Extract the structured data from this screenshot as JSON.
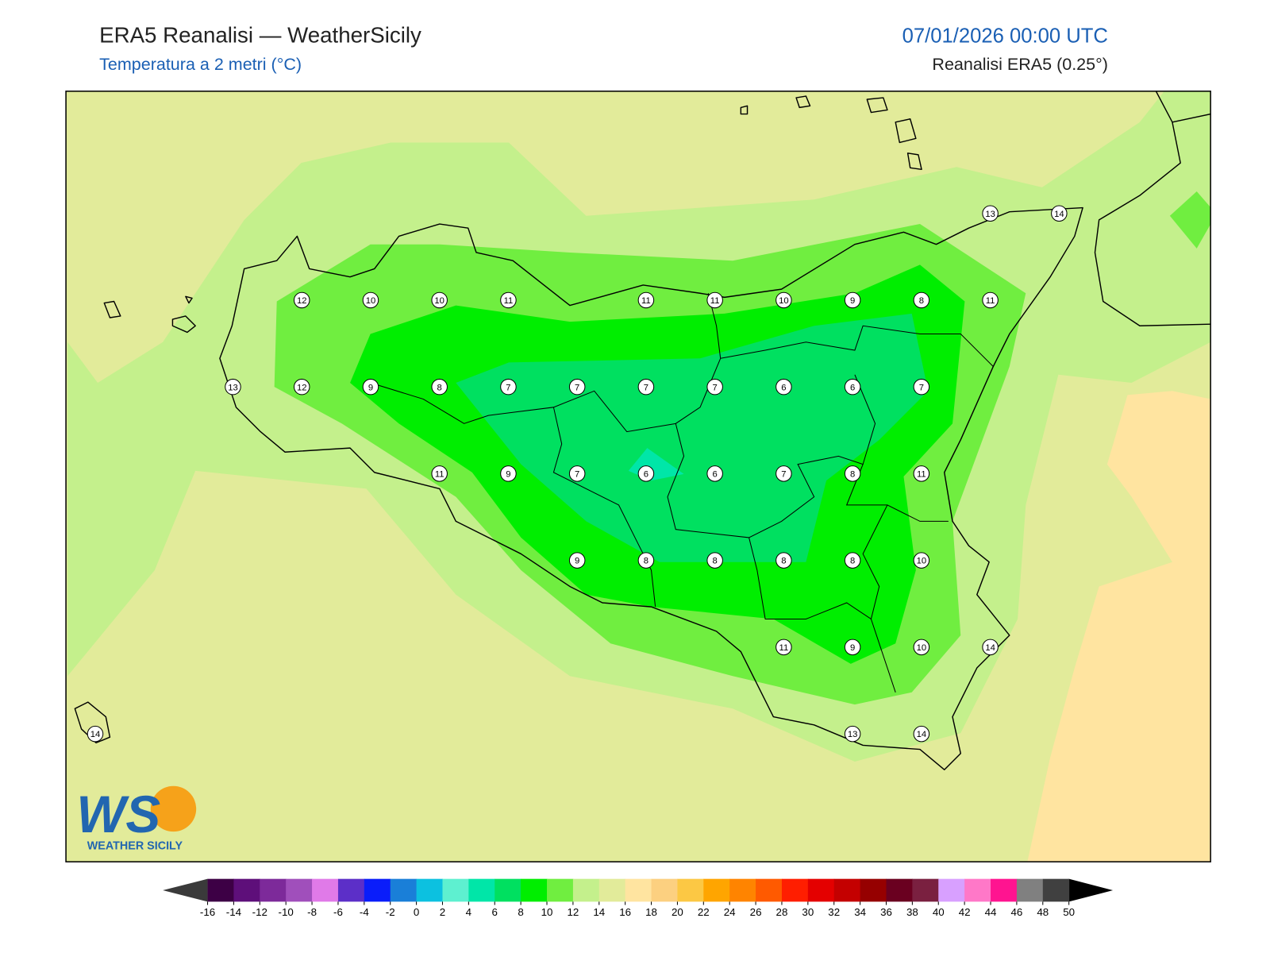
{
  "header": {
    "title": "ERA5 Reanalisi — WeatherSicily",
    "subtitle": "Temperatura a 2 metri (°C)",
    "date": "07/01/2026 00:00 UTC",
    "source": "Reanalisi ERA5 (0.25°)"
  },
  "stations": {
    "rows": [
      [
        null,
        null,
        null,
        null,
        null,
        null,
        null,
        null,
        null,
        null,
        null,
        null,
        null,
        13,
        14
      ],
      [
        null,
        null,
        null,
        12,
        10,
        10,
        11,
        null,
        11,
        11,
        10,
        9,
        8,
        11,
        null
      ],
      [
        null,
        null,
        13,
        12,
        9,
        8,
        7,
        7,
        7,
        7,
        6,
        6,
        7,
        null,
        null
      ],
      [
        null,
        null,
        null,
        null,
        null,
        11,
        9,
        7,
        6,
        6,
        7,
        8,
        11,
        null,
        null
      ],
      [
        null,
        null,
        null,
        null,
        null,
        null,
        null,
        9,
        8,
        8,
        8,
        8,
        10,
        null,
        null
      ],
      [
        null,
        null,
        null,
        null,
        null,
        null,
        null,
        null,
        null,
        null,
        11,
        9,
        10,
        14,
        null
      ],
      [
        14,
        null,
        null,
        null,
        null,
        null,
        null,
        null,
        null,
        null,
        null,
        13,
        14,
        null,
        null
      ]
    ]
  },
  "colorbar": {
    "ticks": [
      -16,
      -14,
      -12,
      -10,
      -8,
      -6,
      -4,
      -2,
      0,
      2,
      4,
      6,
      8,
      10,
      12,
      14,
      16,
      18,
      20,
      22,
      24,
      26,
      28,
      30,
      32,
      34,
      36,
      38,
      40,
      42,
      44,
      46,
      48,
      50
    ],
    "colors": [
      "#3d0045",
      "#5e0f7a",
      "#7d2a9a",
      "#a04fbb",
      "#e07ae8",
      "#5c2fc8",
      "#0a1dfa",
      "#1a7fd8",
      "#0cc1e0",
      "#5ef0d0",
      "#00e6a8",
      "#00e060",
      "#00ee00",
      "#70ee40",
      "#c4f08c",
      "#e2eb9a",
      "#ffe4a0",
      "#fcd080",
      "#fcc844",
      "#ffa500",
      "#ff8400",
      "#ff5a00",
      "#ff1e00",
      "#e40000",
      "#c40000",
      "#960000",
      "#6a0020",
      "#7a2040",
      "#d8a0ff",
      "#ff78c8",
      "#ff1490",
      "#808080",
      "#404040"
    ],
    "extend_colors": [
      "#3a3a3a",
      "#000000"
    ]
  },
  "logo": {
    "mark": "WS",
    "name": "WEATHER SICILY"
  }
}
